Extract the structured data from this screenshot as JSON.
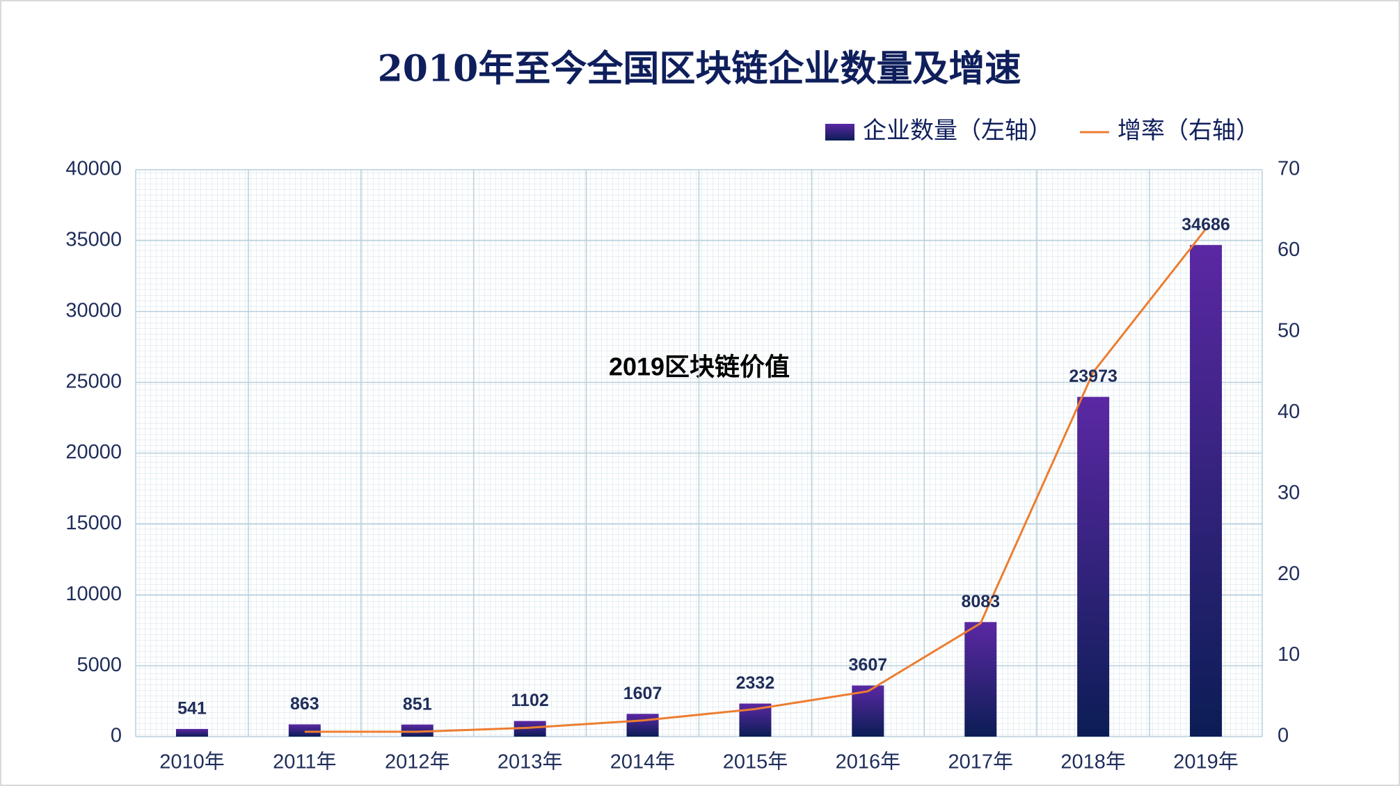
{
  "chart_data": {
    "type": "bar",
    "title": "2010年至今全国区块链企业数量及增速",
    "annotation": "2019区块链价值",
    "categories": [
      "2010年",
      "2011年",
      "2012年",
      "2013年",
      "2014年",
      "2015年",
      "2016年",
      "2017年",
      "2018年",
      "2019年"
    ],
    "series": [
      {
        "name": "企业数量（左轴）",
        "type": "bar",
        "color": "#3a1f86",
        "values": [
          541,
          863,
          851,
          1102,
          1607,
          2332,
          3607,
          8083,
          23973,
          34686
        ]
      },
      {
        "name": "增率（右轴）",
        "type": "line",
        "color": "#ed7d31",
        "axis": "y2",
        "values": [
          null,
          0.6,
          0.6,
          1.1,
          2.0,
          3.4,
          5.6,
          14.0,
          45.0,
          62.7
        ]
      }
    ],
    "ylim": [
      0,
      40000
    ],
    "yticks": [
      0,
      5000,
      10000,
      15000,
      20000,
      25000,
      30000,
      35000,
      40000
    ],
    "y2lim": [
      0,
      70
    ],
    "y2ticks": [
      0,
      10,
      20,
      30,
      40,
      50,
      60,
      70
    ],
    "grid": true
  }
}
